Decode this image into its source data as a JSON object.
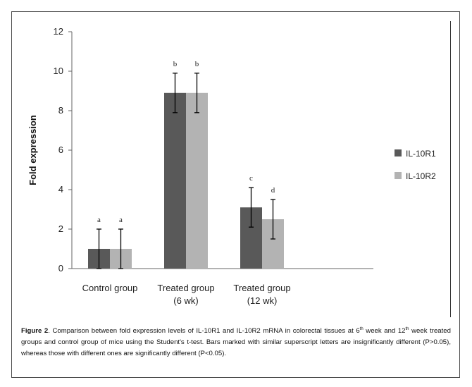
{
  "chart_data": {
    "type": "bar",
    "ylabel": "Fold expression",
    "ylim": [
      0,
      12
    ],
    "yticks": [
      "0",
      "2",
      "4",
      "6",
      "8",
      "10",
      "12"
    ],
    "categories": [
      {
        "line1": "Control  group",
        "line2": ""
      },
      {
        "line1": "Treated group",
        "line2": "(6 wk)"
      },
      {
        "line1": "Treated group",
        "line2": "(12 wk)"
      }
    ],
    "series": [
      {
        "name": "IL-10R1",
        "color": "#595959",
        "values": [
          1.0,
          8.9,
          3.1
        ],
        "errors": [
          1.0,
          1.0,
          1.0
        ],
        "letters": [
          "a",
          "b",
          "c"
        ]
      },
      {
        "name": "IL-10R2",
        "color": "#b3b3b3",
        "values": [
          1.0,
          8.9,
          2.5
        ],
        "errors": [
          1.0,
          1.0,
          1.0
        ],
        "letters": [
          "a",
          "b",
          "d"
        ]
      }
    ],
    "legend_position": "right"
  },
  "caption": {
    "label": "Figure 2",
    "sep": ". ",
    "t1": "Comparison between fold expression levels of IL-10R1 and IL-10R2 mRNA in colorectal tissues at 6",
    "sup1": "th",
    "t2": " week and 12",
    "sup2": "th",
    "t3": " week treated groups and control group of mice using the Student's t-test. Bars marked with similar superscript letters are insignificantly different (P>0.05), whereas those with different ones are significantly different (P<0.05)."
  }
}
